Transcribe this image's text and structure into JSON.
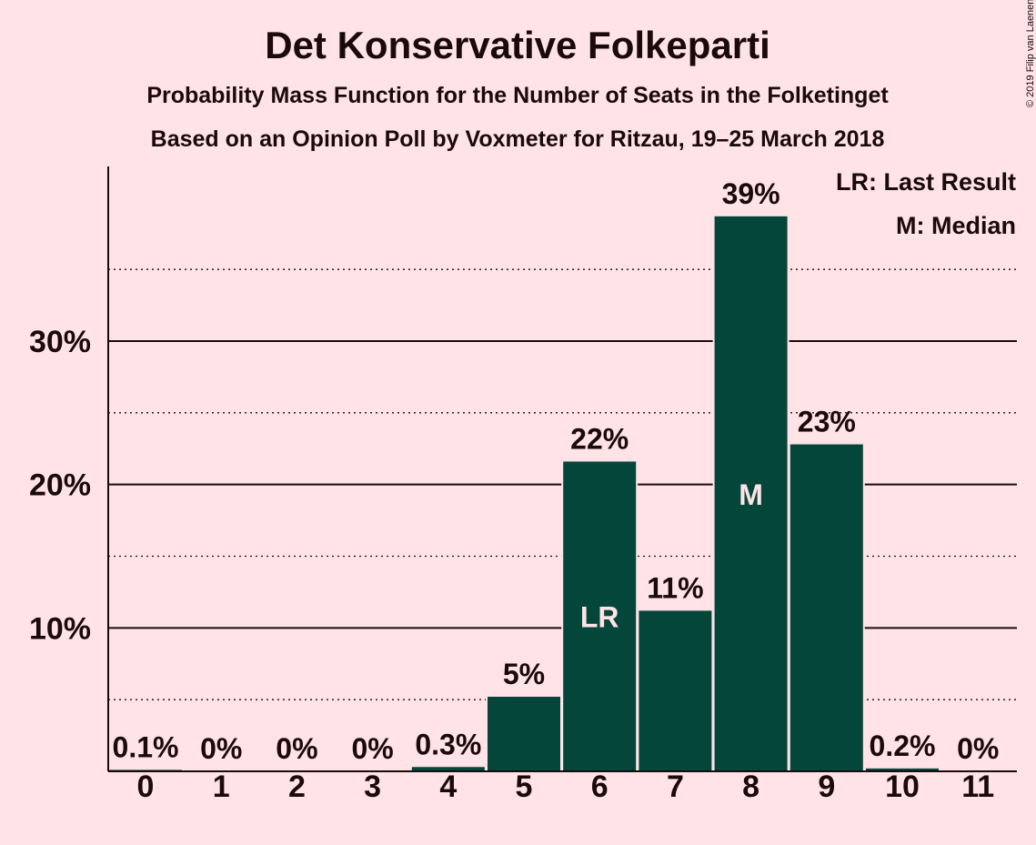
{
  "title": "Det Konservative Folkeparti",
  "subtitle1": "Probability Mass Function for the Number of Seats in the Folketinget",
  "subtitle2": "Based on an Opinion Poll by Voxmeter for Ritzau, 19–25 March 2018",
  "copyright": "© 2019 Filip van Laenen",
  "legend": {
    "lr": "LR: Last Result",
    "m": "M: Median"
  },
  "colors": {
    "bar": "#04463a",
    "background": "#ffe3e6",
    "text": "#1a0a0a"
  },
  "chart_data": {
    "type": "bar",
    "categories": [
      "0",
      "1",
      "2",
      "3",
      "4",
      "5",
      "6",
      "7",
      "8",
      "9",
      "10",
      "11"
    ],
    "values": [
      0.1,
      0,
      0,
      0,
      0.3,
      5.2,
      21.6,
      11.2,
      38.7,
      22.8,
      0.2,
      0
    ],
    "labels": [
      "0.1%",
      "0%",
      "0%",
      "0%",
      "0.3%",
      "5%",
      "22%",
      "11%",
      "39%",
      "23%",
      "0.2%",
      "0%"
    ],
    "markers": {
      "6": "LR",
      "8": "M"
    },
    "ylim": [
      0,
      42
    ],
    "yticks": [
      {
        "value": 10,
        "label": "10%"
      },
      {
        "value": 20,
        "label": "20%"
      },
      {
        "value": 30,
        "label": "30%"
      }
    ],
    "minor_gridlines": [
      5,
      15,
      25,
      35
    ],
    "xlabel": "",
    "ylabel": ""
  }
}
